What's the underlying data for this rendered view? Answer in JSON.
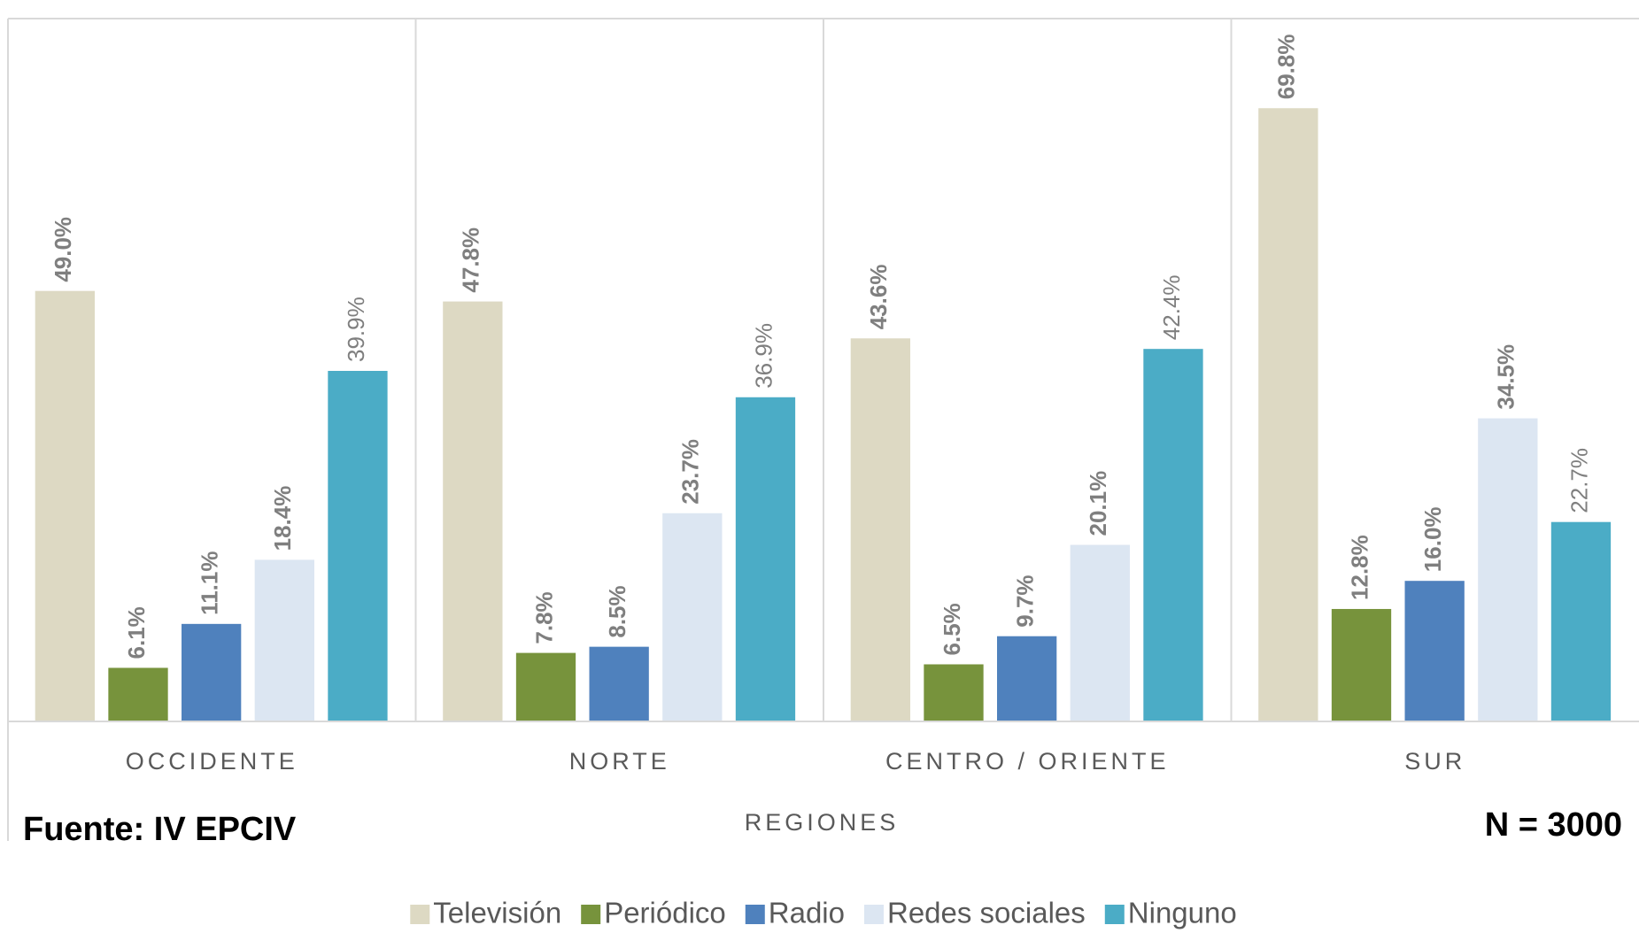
{
  "chart_data": {
    "type": "bar",
    "categories": [
      "OCCIDENTE",
      "NORTE",
      "CENTRO / ORIENTE",
      "SUR"
    ],
    "x_label": "REGIONES",
    "annotations": [
      "Fuente: IV EPCIV",
      "N = 3000"
    ],
    "series": [
      {
        "name": "Televisión",
        "color": "#ddd9c3",
        "values": [
          49.0,
          47.8,
          43.6,
          69.8
        ],
        "value_labels": [
          "49.0%",
          "47.8%",
          "43.6%",
          "69.8%"
        ]
      },
      {
        "name": "Periódico",
        "color": "#77933c",
        "values": [
          6.1,
          7.8,
          6.5,
          12.8
        ],
        "value_labels": [
          "6.1%",
          "7.8%",
          "6.5%",
          "12.8%"
        ]
      },
      {
        "name": "Radio",
        "color": "#4f81bd",
        "values": [
          11.1,
          8.5,
          9.7,
          16.0
        ],
        "value_labels": [
          "11.1%",
          "8.5%",
          "9.7%",
          "16.0%"
        ]
      },
      {
        "name": "Redes sociales",
        "color": "#dce6f2",
        "values": [
          18.4,
          23.7,
          20.1,
          34.5
        ],
        "value_labels": [
          "18.4%",
          "23.7%",
          "20.1%",
          "34.5%"
        ]
      },
      {
        "name": "Ninguno",
        "color": "#4bacc6",
        "values": [
          39.9,
          36.9,
          42.4,
          22.7
        ],
        "value_labels": [
          "39.9%",
          "36.9%",
          "42.4%",
          "22.7%"
        ]
      }
    ],
    "ylim": [
      0,
      80
    ],
    "legend": "bottom"
  }
}
